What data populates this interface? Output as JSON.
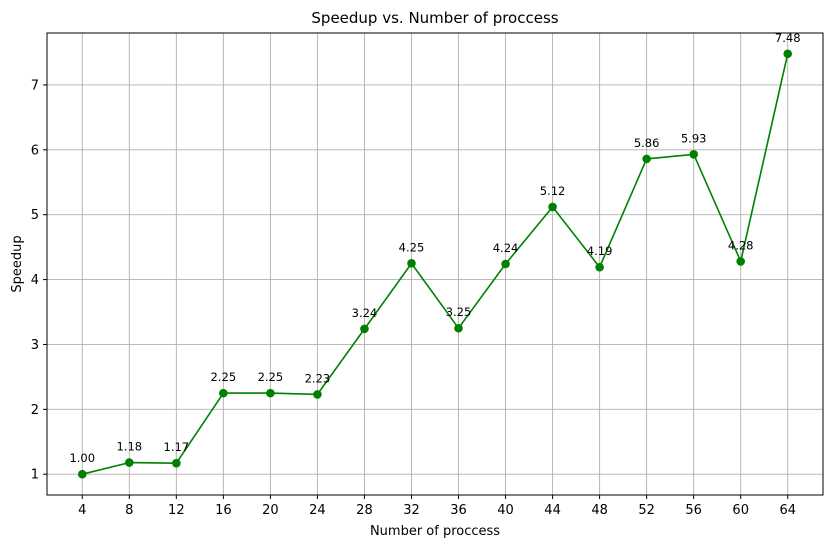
{
  "chart_data": {
    "type": "line",
    "title": "Speedup vs. Number of proccess",
    "xlabel": "Number of proccess",
    "ylabel": "Speedup",
    "x": [
      4,
      8,
      12,
      16,
      20,
      24,
      28,
      32,
      36,
      40,
      44,
      48,
      52,
      56,
      60,
      64
    ],
    "x_tick_labels": [
      "4",
      "8",
      "12",
      "16",
      "20",
      "24",
      "28",
      "32",
      "36",
      "40",
      "44",
      "48",
      "52",
      "56",
      "60",
      "64"
    ],
    "series": [
      {
        "values": [
          1.0,
          1.18,
          1.17,
          2.25,
          2.25,
          2.23,
          3.24,
          4.25,
          3.25,
          4.24,
          5.12,
          4.19,
          5.86,
          5.93,
          4.28,
          7.48
        ],
        "data_labels": [
          "1.00",
          "1.18",
          "1.17",
          "2.25",
          "2.25",
          "2.23",
          "3.24",
          "4.25",
          "3.25",
          "4.24",
          "5.12",
          "4.19",
          "5.86",
          "5.93",
          "4.28",
          "7.48"
        ]
      }
    ],
    "y_ticks": [
      1,
      2,
      3,
      4,
      5,
      6,
      7
    ],
    "y_tick_labels": [
      "1",
      "2",
      "3",
      "4",
      "5",
      "6",
      "7"
    ],
    "xlim": [
      1,
      67
    ],
    "ylim": [
      0.68,
      7.8
    ],
    "grid": true,
    "line_color": "#008000",
    "grid_color": "#b0b0b0"
  }
}
